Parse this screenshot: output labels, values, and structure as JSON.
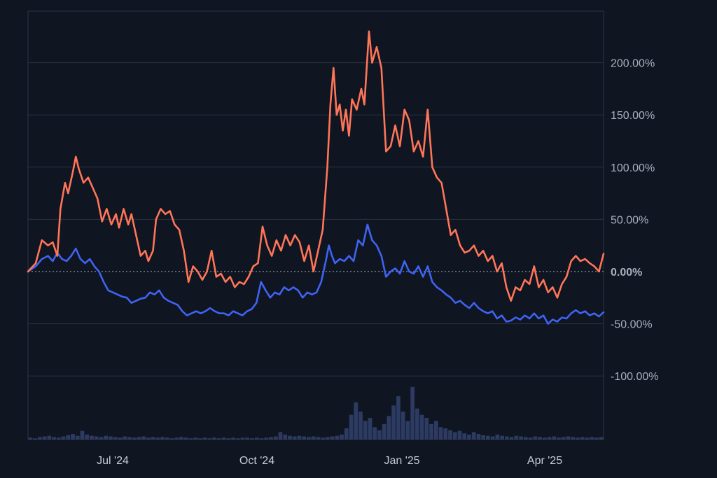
{
  "chart_data": {
    "type": "line",
    "title": "",
    "xlabel": "",
    "ylabel": "",
    "x_ticks": [
      "Jul '24",
      "Oct '24",
      "Jan '25",
      "Apr '25"
    ],
    "y_ticks": [
      {
        "value": 200,
        "label": "200.00%"
      },
      {
        "value": 150,
        "label": "150.00%"
      },
      {
        "value": 100,
        "label": "100.00%"
      },
      {
        "value": 50,
        "label": "50.00%"
      },
      {
        "value": 0,
        "label": "0.00%"
      },
      {
        "value": -50,
        "label": "-50.00%"
      },
      {
        "value": -100,
        "label": "-100.00%"
      }
    ],
    "ylim": [
      -100,
      240
    ],
    "x_range": [
      "2024-05-08",
      "2025-05-16"
    ],
    "grid": true,
    "colors": {
      "background": "#0f1521",
      "grid": "#2c3442",
      "series_1": "#ff7558",
      "series_2": "#3f63f2",
      "volume": "#2d3b63"
    },
    "series": [
      {
        "color": "#ff7558",
        "points": [
          [
            "2024-05-08",
            0
          ],
          [
            "2024-05-13",
            8
          ],
          [
            "2024-05-17",
            30
          ],
          [
            "2024-05-21",
            25
          ],
          [
            "2024-05-24",
            28
          ],
          [
            "2024-05-27",
            15
          ],
          [
            "2024-05-29",
            60
          ],
          [
            "2024-06-01",
            85
          ],
          [
            "2024-06-03",
            75
          ],
          [
            "2024-06-06",
            95
          ],
          [
            "2024-06-08",
            110
          ],
          [
            "2024-06-10",
            98
          ],
          [
            "2024-06-13",
            85
          ],
          [
            "2024-06-16",
            90
          ],
          [
            "2024-06-19",
            80
          ],
          [
            "2024-06-22",
            70
          ],
          [
            "2024-06-25",
            48
          ],
          [
            "2024-06-28",
            60
          ],
          [
            "2024-07-01",
            45
          ],
          [
            "2024-07-04",
            55
          ],
          [
            "2024-07-06",
            42
          ],
          [
            "2024-07-09",
            60
          ],
          [
            "2024-07-12",
            45
          ],
          [
            "2024-07-14",
            55
          ],
          [
            "2024-07-17",
            35
          ],
          [
            "2024-07-20",
            15
          ],
          [
            "2024-07-23",
            20
          ],
          [
            "2024-07-25",
            10
          ],
          [
            "2024-07-28",
            20
          ],
          [
            "2024-07-30",
            50
          ],
          [
            "2024-08-02",
            60
          ],
          [
            "2024-08-05",
            55
          ],
          [
            "2024-08-08",
            58
          ],
          [
            "2024-08-11",
            45
          ],
          [
            "2024-08-14",
            40
          ],
          [
            "2024-08-17",
            20
          ],
          [
            "2024-08-20",
            -10
          ],
          [
            "2024-08-23",
            5
          ],
          [
            "2024-08-26",
            0
          ],
          [
            "2024-08-29",
            -8
          ],
          [
            "2024-09-01",
            0
          ],
          [
            "2024-09-04",
            20
          ],
          [
            "2024-09-07",
            -5
          ],
          [
            "2024-09-10",
            -2
          ],
          [
            "2024-09-13",
            -10
          ],
          [
            "2024-09-16",
            -5
          ],
          [
            "2024-09-19",
            -15
          ],
          [
            "2024-09-22",
            -10
          ],
          [
            "2024-09-25",
            -12
          ],
          [
            "2024-09-28",
            -5
          ],
          [
            "2024-10-01",
            5
          ],
          [
            "2024-10-04",
            8
          ],
          [
            "2024-10-07",
            43
          ],
          [
            "2024-10-10",
            25
          ],
          [
            "2024-10-13",
            15
          ],
          [
            "2024-10-16",
            30
          ],
          [
            "2024-10-19",
            20
          ],
          [
            "2024-10-22",
            35
          ],
          [
            "2024-10-25",
            25
          ],
          [
            "2024-10-28",
            35
          ],
          [
            "2024-10-31",
            28
          ],
          [
            "2024-11-03",
            10
          ],
          [
            "2024-11-06",
            25
          ],
          [
            "2024-11-09",
            0
          ],
          [
            "2024-11-12",
            20
          ],
          [
            "2024-11-15",
            40
          ],
          [
            "2024-11-18",
            100
          ],
          [
            "2024-11-20",
            160
          ],
          [
            "2024-11-22",
            195
          ],
          [
            "2024-11-24",
            150
          ],
          [
            "2024-11-26",
            160
          ],
          [
            "2024-11-28",
            135
          ],
          [
            "2024-11-30",
            155
          ],
          [
            "2024-12-02",
            130
          ],
          [
            "2024-12-04",
            165
          ],
          [
            "2024-12-07",
            155
          ],
          [
            "2024-12-10",
            175
          ],
          [
            "2024-12-12",
            160
          ],
          [
            "2024-12-15",
            230
          ],
          [
            "2024-12-17",
            200
          ],
          [
            "2024-12-20",
            215
          ],
          [
            "2024-12-23",
            195
          ],
          [
            "2024-12-26",
            115
          ],
          [
            "2024-12-29",
            120
          ],
          [
            "2025-01-01",
            140
          ],
          [
            "2025-01-04",
            120
          ],
          [
            "2025-01-07",
            155
          ],
          [
            "2025-01-10",
            145
          ],
          [
            "2025-01-13",
            115
          ],
          [
            "2025-01-16",
            125
          ],
          [
            "2025-01-19",
            110
          ],
          [
            "2025-01-22",
            155
          ],
          [
            "2025-01-25",
            100
          ],
          [
            "2025-01-28",
            90
          ],
          [
            "2025-01-31",
            85
          ],
          [
            "2025-02-03",
            60
          ],
          [
            "2025-02-06",
            35
          ],
          [
            "2025-02-09",
            40
          ],
          [
            "2025-02-12",
            25
          ],
          [
            "2025-02-15",
            18
          ],
          [
            "2025-02-18",
            20
          ],
          [
            "2025-02-21",
            25
          ],
          [
            "2025-02-24",
            15
          ],
          [
            "2025-02-27",
            20
          ],
          [
            "2025-03-02",
            10
          ],
          [
            "2025-03-05",
            15
          ],
          [
            "2025-03-08",
            0
          ],
          [
            "2025-03-11",
            8
          ],
          [
            "2025-03-14",
            -15
          ],
          [
            "2025-03-17",
            -28
          ],
          [
            "2025-03-20",
            -15
          ],
          [
            "2025-03-23",
            -18
          ],
          [
            "2025-03-26",
            -8
          ],
          [
            "2025-03-29",
            -12
          ],
          [
            "2025-04-01",
            5
          ],
          [
            "2025-04-04",
            -15
          ],
          [
            "2025-04-07",
            -8
          ],
          [
            "2025-04-10",
            -20
          ],
          [
            "2025-04-13",
            -15
          ],
          [
            "2025-04-16",
            -25
          ],
          [
            "2025-04-19",
            -12
          ],
          [
            "2025-04-22",
            -5
          ],
          [
            "2025-04-25",
            10
          ],
          [
            "2025-04-28",
            15
          ],
          [
            "2025-05-01",
            10
          ],
          [
            "2025-05-04",
            12
          ],
          [
            "2025-05-07",
            8
          ],
          [
            "2025-05-10",
            5
          ],
          [
            "2025-05-13",
            0
          ],
          [
            "2025-05-16",
            17
          ]
        ]
      },
      {
        "color": "#3f63f2",
        "points": [
          [
            "2024-05-08",
            0
          ],
          [
            "2024-05-13",
            5
          ],
          [
            "2024-05-17",
            12
          ],
          [
            "2024-05-21",
            15
          ],
          [
            "2024-05-24",
            10
          ],
          [
            "2024-05-27",
            18
          ],
          [
            "2024-05-30",
            12
          ],
          [
            "2024-06-02",
            10
          ],
          [
            "2024-06-05",
            15
          ],
          [
            "2024-06-08",
            22
          ],
          [
            "2024-06-11",
            12
          ],
          [
            "2024-06-14",
            8
          ],
          [
            "2024-06-17",
            12
          ],
          [
            "2024-06-20",
            5
          ],
          [
            "2024-06-23",
            0
          ],
          [
            "2024-06-26",
            -10
          ],
          [
            "2024-06-29",
            -18
          ],
          [
            "2024-07-02",
            -20
          ],
          [
            "2024-07-05",
            -22
          ],
          [
            "2024-07-08",
            -24
          ],
          [
            "2024-07-11",
            -25
          ],
          [
            "2024-07-14",
            -30
          ],
          [
            "2024-07-17",
            -28
          ],
          [
            "2024-07-20",
            -26
          ],
          [
            "2024-07-23",
            -25
          ],
          [
            "2024-07-26",
            -20
          ],
          [
            "2024-07-29",
            -22
          ],
          [
            "2024-08-01",
            -18
          ],
          [
            "2024-08-04",
            -25
          ],
          [
            "2024-08-07",
            -28
          ],
          [
            "2024-08-10",
            -30
          ],
          [
            "2024-08-13",
            -32
          ],
          [
            "2024-08-16",
            -38
          ],
          [
            "2024-08-19",
            -42
          ],
          [
            "2024-08-22",
            -40
          ],
          [
            "2024-08-25",
            -38
          ],
          [
            "2024-08-28",
            -40
          ],
          [
            "2024-08-31",
            -38
          ],
          [
            "2024-09-03",
            -35
          ],
          [
            "2024-09-06",
            -38
          ],
          [
            "2024-09-09",
            -40
          ],
          [
            "2024-09-12",
            -40
          ],
          [
            "2024-09-15",
            -42
          ],
          [
            "2024-09-18",
            -38
          ],
          [
            "2024-09-21",
            -40
          ],
          [
            "2024-09-24",
            -42
          ],
          [
            "2024-09-27",
            -38
          ],
          [
            "2024-09-30",
            -36
          ],
          [
            "2024-10-03",
            -30
          ],
          [
            "2024-10-06",
            -10
          ],
          [
            "2024-10-09",
            -18
          ],
          [
            "2024-10-12",
            -25
          ],
          [
            "2024-10-15",
            -20
          ],
          [
            "2024-10-18",
            -22
          ],
          [
            "2024-10-21",
            -15
          ],
          [
            "2024-10-24",
            -18
          ],
          [
            "2024-10-27",
            -15
          ],
          [
            "2024-10-30",
            -18
          ],
          [
            "2024-11-02",
            -25
          ],
          [
            "2024-11-05",
            -20
          ],
          [
            "2024-11-08",
            -22
          ],
          [
            "2024-11-11",
            -20
          ],
          [
            "2024-11-14",
            -10
          ],
          [
            "2024-11-17",
            10
          ],
          [
            "2024-11-19",
            25
          ],
          [
            "2024-11-21",
            15
          ],
          [
            "2024-11-23",
            8
          ],
          [
            "2024-11-26",
            12
          ],
          [
            "2024-11-29",
            10
          ],
          [
            "2024-12-02",
            15
          ],
          [
            "2024-12-05",
            10
          ],
          [
            "2024-12-08",
            30
          ],
          [
            "2024-12-11",
            25
          ],
          [
            "2024-12-14",
            45
          ],
          [
            "2024-12-17",
            30
          ],
          [
            "2024-12-20",
            25
          ],
          [
            "2024-12-23",
            15
          ],
          [
            "2024-12-26",
            -5
          ],
          [
            "2024-12-29",
            0
          ],
          [
            "2025-01-01",
            3
          ],
          [
            "2025-01-04",
            -2
          ],
          [
            "2025-01-07",
            10
          ],
          [
            "2025-01-10",
            0
          ],
          [
            "2025-01-13",
            -2
          ],
          [
            "2025-01-16",
            5
          ],
          [
            "2025-01-19",
            -5
          ],
          [
            "2025-01-22",
            5
          ],
          [
            "2025-01-25",
            -10
          ],
          [
            "2025-01-28",
            -15
          ],
          [
            "2025-01-31",
            -18
          ],
          [
            "2025-02-03",
            -22
          ],
          [
            "2025-02-06",
            -25
          ],
          [
            "2025-02-09",
            -30
          ],
          [
            "2025-02-12",
            -28
          ],
          [
            "2025-02-15",
            -32
          ],
          [
            "2025-02-18",
            -35
          ],
          [
            "2025-02-21",
            -30
          ],
          [
            "2025-02-24",
            -35
          ],
          [
            "2025-02-27",
            -38
          ],
          [
            "2025-03-02",
            -40
          ],
          [
            "2025-03-05",
            -38
          ],
          [
            "2025-03-08",
            -45
          ],
          [
            "2025-03-11",
            -42
          ],
          [
            "2025-03-14",
            -48
          ],
          [
            "2025-03-17",
            -47
          ],
          [
            "2025-03-20",
            -44
          ],
          [
            "2025-03-23",
            -46
          ],
          [
            "2025-03-26",
            -42
          ],
          [
            "2025-03-29",
            -45
          ],
          [
            "2025-04-01",
            -40
          ],
          [
            "2025-04-04",
            -45
          ],
          [
            "2025-04-07",
            -42
          ],
          [
            "2025-04-10",
            -50
          ],
          [
            "2025-04-13",
            -46
          ],
          [
            "2025-04-16",
            -48
          ],
          [
            "2025-04-19",
            -44
          ],
          [
            "2025-04-22",
            -45
          ],
          [
            "2025-04-25",
            -40
          ],
          [
            "2025-04-28",
            -37
          ],
          [
            "2025-05-01",
            -40
          ],
          [
            "2025-05-04",
            -38
          ],
          [
            "2025-05-07",
            -42
          ],
          [
            "2025-05-10",
            -40
          ],
          [
            "2025-05-13",
            -43
          ],
          [
            "2025-05-16",
            -39
          ]
        ]
      }
    ],
    "volume": [
      3,
      2,
      4,
      5,
      6,
      4,
      3,
      5,
      7,
      9,
      6,
      14,
      8,
      6,
      5,
      4,
      6,
      5,
      4,
      3,
      5,
      4,
      3,
      4,
      5,
      3,
      4,
      3,
      4,
      3,
      2,
      3,
      4,
      3,
      2,
      3,
      2,
      3,
      2,
      3,
      2,
      3,
      2,
      3,
      2,
      3,
      3,
      2,
      3,
      2,
      3,
      4,
      5,
      12,
      8,
      6,
      5,
      6,
      5,
      4,
      5,
      4,
      3,
      4,
      5,
      6,
      8,
      18,
      40,
      60,
      45,
      30,
      35,
      20,
      15,
      25,
      38,
      55,
      70,
      45,
      30,
      85,
      50,
      40,
      35,
      25,
      30,
      20,
      18,
      15,
      12,
      14,
      10,
      8,
      12,
      9,
      7,
      6,
      5,
      8,
      6,
      5,
      4,
      6,
      5,
      4,
      3,
      5,
      4,
      3,
      4,
      5,
      3,
      4,
      5,
      4,
      3,
      4,
      3,
      4,
      3,
      4
    ]
  }
}
